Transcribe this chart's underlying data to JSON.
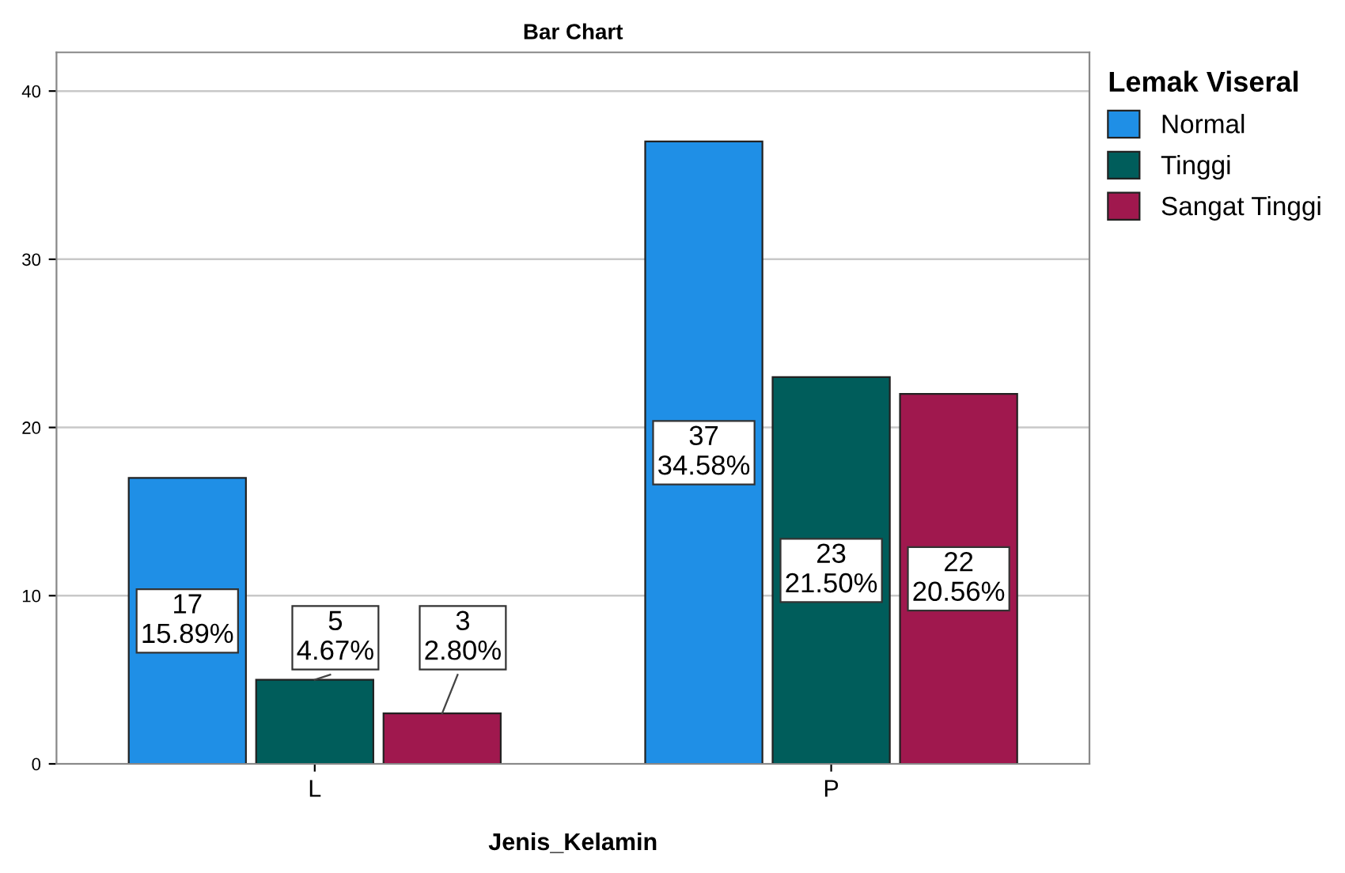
{
  "chart_data": {
    "type": "bar",
    "title": "Bar Chart",
    "xlabel": "Jenis_Kelamin",
    "legend_title": "Lemak Viseral",
    "categories": [
      "L",
      "P"
    ],
    "series": [
      {
        "name": "Normal",
        "color": "#1f8fe6",
        "values": [
          17,
          37
        ],
        "value_labels": [
          "17\n15.89%",
          "37\n34.58%"
        ]
      },
      {
        "name": "Tinggi",
        "color": "#005d5b",
        "values": [
          5,
          23
        ],
        "value_labels": [
          "5\n4.67%",
          "23\n21.50%"
        ]
      },
      {
        "name": "Sangat Tinggi",
        "color": "#a0184e",
        "values": [
          3,
          22
        ],
        "value_labels": [
          "3\n2.80%",
          "22\n20.56%"
        ]
      }
    ],
    "ylim": [
      0,
      42.3
    ],
    "yticks": [
      0,
      10,
      20,
      30,
      40
    ],
    "grid": "y",
    "legend": "top right"
  }
}
